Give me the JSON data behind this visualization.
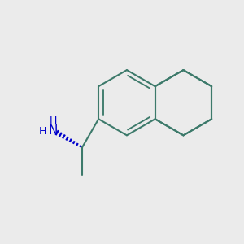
{
  "bg_color": "#ebebeb",
  "bond_color": "#3d7a6b",
  "nh2_color": "#0000cc",
  "bond_width": 1.5,
  "fig_size": [
    3.0,
    3.0
  ],
  "dpi": 100,
  "xlim": [
    0,
    10
  ],
  "ylim": [
    0,
    10
  ]
}
